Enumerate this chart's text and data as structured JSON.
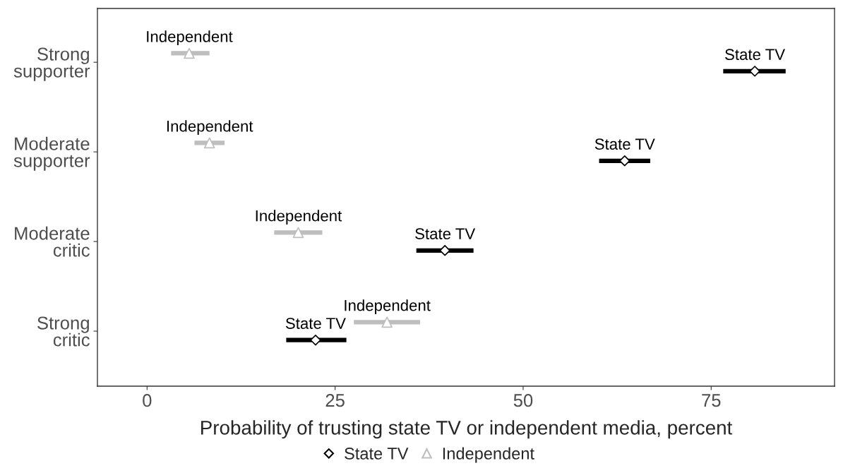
{
  "chart_data": {
    "type": "scatter",
    "orientation": "horizontal",
    "xlabel": "Probability of trusting state TV or independent media, percent",
    "categories": [
      "Strong\nsupporter",
      "Moderate\nsupporter",
      "Moderate\ncritic",
      "Strong\ncritic"
    ],
    "series": [
      {
        "name": "State TV",
        "color": "#000000",
        "marker": "diamond",
        "values": [
          80.8,
          63.5,
          39.6,
          22.4
        ],
        "errors": [
          [
            76.6,
            84.9
          ],
          [
            60.1,
            66.9
          ],
          [
            35.8,
            43.4
          ],
          [
            18.5,
            26.5
          ]
        ]
      },
      {
        "name": "Independent",
        "color": "#bebebe",
        "marker": "triangle",
        "values": [
          5.6,
          8.3,
          20.1,
          31.9
        ],
        "errors": [
          [
            3.2,
            8.3
          ],
          [
            6.3,
            10.3
          ],
          [
            16.9,
            23.3
          ],
          [
            27.5,
            36.3
          ]
        ]
      }
    ],
    "xlim": [
      -6.6,
      91.4
    ],
    "xticks": [
      0,
      25,
      50,
      75
    ],
    "grid": false,
    "legend": "bottom"
  }
}
